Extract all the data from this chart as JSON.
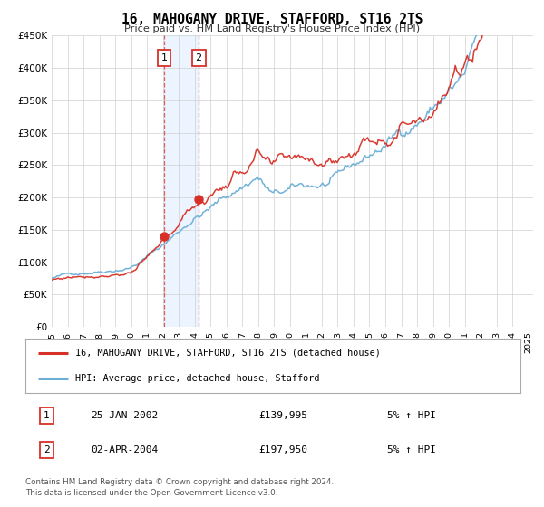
{
  "title": "16, MAHOGANY DRIVE, STAFFORD, ST16 2TS",
  "subtitle": "Price paid vs. HM Land Registry's House Price Index (HPI)",
  "legend_line1": "16, MAHOGANY DRIVE, STAFFORD, ST16 2TS (detached house)",
  "legend_line2": "HPI: Average price, detached house, Stafford",
  "footnote1": "Contains HM Land Registry data © Crown copyright and database right 2024.",
  "footnote2": "This data is licensed under the Open Government Licence v3.0.",
  "transaction1_date": "25-JAN-2002",
  "transaction1_price": "£139,995",
  "transaction1_hpi": "5% ↑ HPI",
  "transaction1_date_num": 2002.07,
  "transaction1_price_num": 139995,
  "transaction2_date": "02-APR-2004",
  "transaction2_price": "£197,950",
  "transaction2_hpi": "5% ↑ HPI",
  "transaction2_date_num": 2004.25,
  "transaction2_price_num": 197950,
  "hpi_color": "#6baed6",
  "price_color": "#d73027",
  "background_color": "#ffffff",
  "grid_color": "#cccccc",
  "highlight_color": "#ddeeff",
  "ylim": [
    0,
    450000
  ],
  "xlim_start": 1995.0,
  "xlim_end": 2025.3,
  "ytick_values": [
    0,
    50000,
    100000,
    150000,
    200000,
    250000,
    300000,
    350000,
    400000,
    450000
  ],
  "ytick_labels": [
    "£0",
    "£50K",
    "£100K",
    "£150K",
    "£200K",
    "£250K",
    "£300K",
    "£350K",
    "£400K",
    "£450K"
  ],
  "xtick_years": [
    1995,
    1996,
    1997,
    1998,
    1999,
    2000,
    2001,
    2002,
    2003,
    2004,
    2005,
    2006,
    2007,
    2008,
    2009,
    2010,
    2011,
    2012,
    2013,
    2014,
    2015,
    2016,
    2017,
    2018,
    2019,
    2020,
    2021,
    2022,
    2023,
    2024,
    2025
  ]
}
